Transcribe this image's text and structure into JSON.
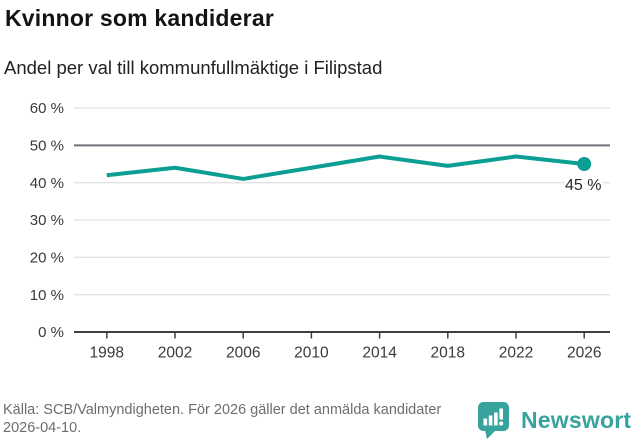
{
  "header": {
    "title": "Kvinnor som kandiderar",
    "subtitle": "Andel per val till kommunfullmäktige i Filipstad"
  },
  "chart_data": {
    "type": "line",
    "title": "Kvinnor som kandiderar",
    "subtitle": "Andel per val till kommunfullmäktige i Filipstad",
    "x": [
      1998,
      2002,
      2006,
      2010,
      2014,
      2018,
      2022,
      2026
    ],
    "x_tick_labels": [
      "1998",
      "2002",
      "2006",
      "2010",
      "2014",
      "2018",
      "2022",
      "2026"
    ],
    "values": [
      42,
      44,
      41,
      44,
      47,
      44.5,
      47,
      45
    ],
    "ylim": [
      0,
      60
    ],
    "y_ticks": [
      0,
      10,
      20,
      30,
      40,
      50,
      60
    ],
    "y_tick_labels": [
      "0 %",
      "10 %",
      "20 %",
      "30 %",
      "40 %",
      "50 %",
      "60 %"
    ],
    "reference_line": {
      "value": 50
    },
    "end_label": "45 %",
    "grid": true,
    "legend": "none",
    "line_color": "#0b9e93",
    "reference_color": "#71717a",
    "grid_color": "#e2e2e2",
    "axis_color": "#3f3f3f"
  },
  "footer": {
    "source": "Källa: SCB/Valmyndigheten. För 2026 gäller det anmälda kandidater 2026-04-10.",
    "brand": "Newsworthy",
    "brand_color": "#38a39c"
  }
}
